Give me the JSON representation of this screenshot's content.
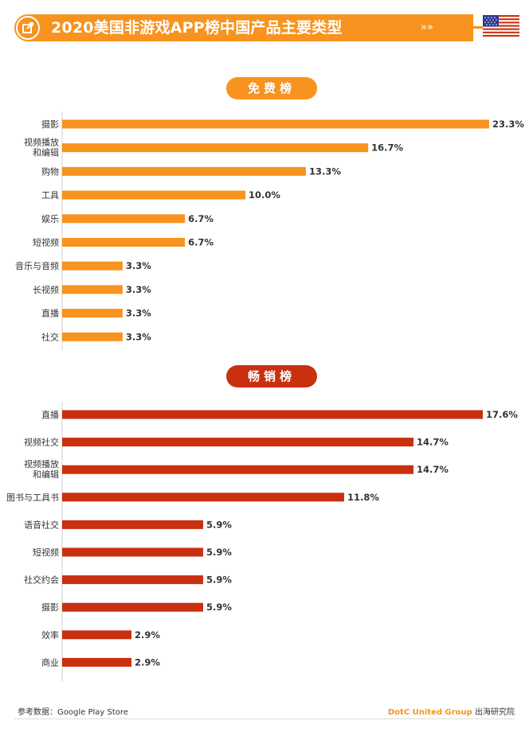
{
  "header": {
    "title": "2020美国非游戏APP榜中国产品主要类型",
    "chevrons": "»»",
    "accent_color": "#f7931e",
    "flag": "us-flag-icon"
  },
  "sections": {
    "free_label": "免费榜",
    "paid_label": "畅销榜"
  },
  "chart_data": [
    {
      "type": "bar",
      "orientation": "horizontal",
      "title": "免费榜",
      "color": "#f7931e",
      "categories": [
        "摄影",
        "视频播放\n和编辑",
        "购物",
        "工具",
        "娱乐",
        "短视频",
        "音乐与音频",
        "长视频",
        "直播",
        "社交"
      ],
      "values": [
        23.3,
        16.7,
        13.3,
        10.0,
        6.7,
        6.7,
        3.3,
        3.3,
        3.3,
        3.3
      ],
      "labels": [
        "23.3%",
        "16.7%",
        "13.3%",
        "10.0%",
        "6.7%",
        "6.7%",
        "3.3%",
        "3.3%",
        "3.3%",
        "3.3%"
      ],
      "xlim": [
        0,
        23.3
      ]
    },
    {
      "type": "bar",
      "orientation": "horizontal",
      "title": "畅销榜",
      "color": "#c9300f",
      "categories": [
        "直播",
        "视频社交",
        "视频播放\n和编辑",
        "图书与工具书",
        "语音社交",
        "短视频",
        "社交约会",
        "摄影",
        "效率",
        "商业"
      ],
      "values": [
        17.6,
        14.7,
        14.7,
        11.8,
        5.9,
        5.9,
        5.9,
        5.9,
        2.9,
        2.9
      ],
      "labels": [
        "17.6%",
        "14.7%",
        "14.7%",
        "11.8%",
        "5.9%",
        "5.9%",
        "5.9%",
        "5.9%",
        "2.9%",
        "2.9%"
      ],
      "xlim": [
        0,
        17.6
      ]
    }
  ],
  "footer": {
    "source": "参考数据：Google Play Store",
    "brand": "DotC United Group",
    "institute": "出海研究院"
  }
}
